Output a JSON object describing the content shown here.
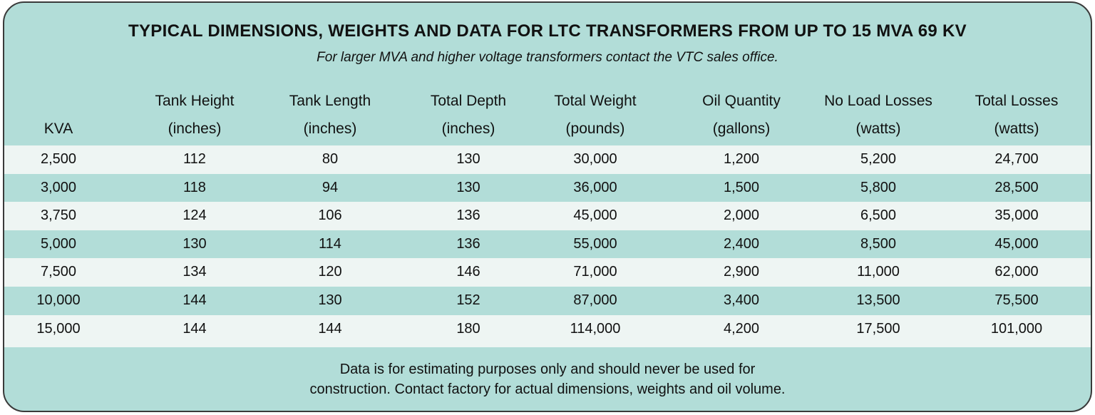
{
  "title": "TYPICAL DIMENSIONS, WEIGHTS AND DATA FOR LTC TRANSFORMERS FROM UP TO 15 MVA 69 KV",
  "subtitle": "For larger MVA and higher voltage transformers contact the VTC sales office.",
  "colors": {
    "panel": "#b2ddd8",
    "light_row": "#eef5f3",
    "border": "#3a3a3a"
  },
  "columns": [
    {
      "line1": "",
      "line2": "KVA"
    },
    {
      "line1": "Tank Height",
      "line2": "(inches)"
    },
    {
      "line1": "Tank Length",
      "line2": "(inches)"
    },
    {
      "line1": "Total Depth",
      "line2": "(inches)"
    },
    {
      "line1": "Total Weight",
      "line2": "(pounds)"
    },
    {
      "line1": "Oil Quantity",
      "line2": "(gallons)"
    },
    {
      "line1": "No Load Losses",
      "line2": "(watts)"
    },
    {
      "line1": "Total Losses",
      "line2": "(watts)"
    }
  ],
  "rows": [
    [
      "2,500",
      "112",
      "80",
      "130",
      "30,000",
      "1,200",
      "5,200",
      "24,700"
    ],
    [
      "3,000",
      "118",
      "94",
      "130",
      "36,000",
      "1,500",
      "5,800",
      "28,500"
    ],
    [
      "3,750",
      "124",
      "106",
      "136",
      "45,000",
      "2,000",
      "6,500",
      "35,000"
    ],
    [
      "5,000",
      "130",
      "114",
      "136",
      "55,000",
      "2,400",
      "8,500",
      "45,000"
    ],
    [
      "7,500",
      "134",
      "120",
      "146",
      "71,000",
      "2,900",
      "11,000",
      "62,000"
    ],
    [
      "10,000",
      "144",
      "130",
      "152",
      "87,000",
      "3,400",
      "13,500",
      "75,500"
    ],
    [
      "15,000",
      "144",
      "144",
      "180",
      "114,000",
      "4,200",
      "17,500",
      "101,000"
    ]
  ],
  "footer": {
    "line1": "Data is for estimating purposes only and should never be used for",
    "line2": "construction.  Contact factory for actual dimensions, weights and oil volume."
  }
}
